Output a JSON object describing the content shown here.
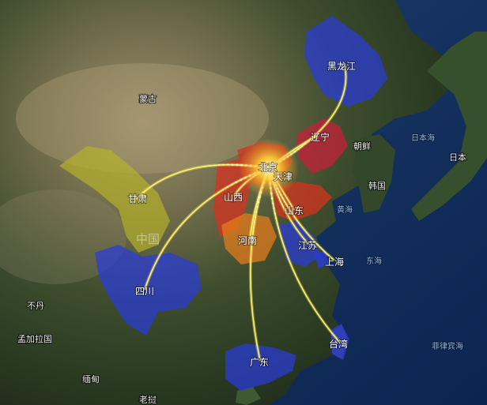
{
  "colors": {
    "route": "#fff06a",
    "origin_glow": "#ffd23a",
    "label": "#ffffff",
    "province_blue": "#2a3bd8",
    "province_red": "#d4331f",
    "province_crimson": "#c4203a",
    "province_orange": "#e87d1a",
    "province_olive": "#b7b32a",
    "sea_label": "#8fb3d9"
  },
  "origin": {
    "name": "北京"
  },
  "destinations": [
    {
      "name": "黑龙江",
      "color": "#2a3bd8",
      "level": "high"
    },
    {
      "name": "辽宁",
      "color": "#c4203a",
      "level": "medium"
    },
    {
      "name": "天津",
      "color": "#d4331f",
      "level": "medium"
    },
    {
      "name": "甘肃",
      "color": "#b7b32a",
      "level": "low"
    },
    {
      "name": "山西",
      "color": "#d4331f",
      "level": "medium"
    },
    {
      "name": "山东",
      "color": "#d4331f",
      "level": "medium"
    },
    {
      "name": "河南",
      "color": "#e87d1a",
      "level": "medium"
    },
    {
      "name": "江苏",
      "color": "#2a3bd8",
      "level": "high"
    },
    {
      "name": "上海",
      "color": "#2a3bd8",
      "level": "high"
    },
    {
      "name": "四川",
      "color": "#2a3bd8",
      "level": "high"
    },
    {
      "name": "台湾",
      "color": "#2a3bd8",
      "level": "high"
    },
    {
      "name": "广东",
      "color": "#2a3bd8",
      "level": "high"
    }
  ],
  "basemap_labels": {
    "mongolia": "蒙古",
    "china": "中国",
    "north_korea": "朝鲜",
    "south_korea": "韩国",
    "japan_sea": "日本海",
    "japan": "日本",
    "yellow_sea": "黄海",
    "east_sea": "东海",
    "philippine_sea": "菲律宾海",
    "bhutan": "不丹",
    "bangladesh": "孟加拉国",
    "myanmar": "缅甸",
    "laos": "老挝"
  }
}
